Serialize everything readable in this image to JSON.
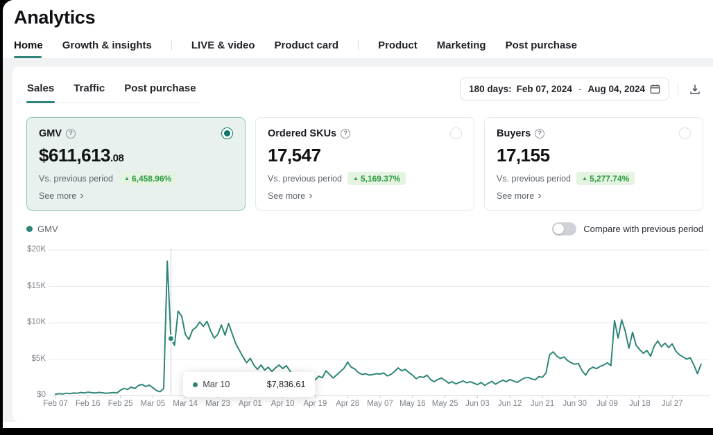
{
  "page": {
    "title": "Analytics"
  },
  "nav": {
    "items": [
      {
        "label": "Home",
        "active": true
      },
      {
        "label": "Growth & insights",
        "active": false
      },
      {
        "label": "LIVE & video",
        "active": false
      },
      {
        "label": "Product card",
        "active": false
      },
      {
        "label": "Product",
        "active": false
      },
      {
        "label": "Marketing",
        "active": false
      },
      {
        "label": "Post purchase",
        "active": false
      }
    ],
    "divider_after": [
      1,
      3
    ]
  },
  "panel": {
    "tabs": [
      {
        "label": "Sales",
        "active": true
      },
      {
        "label": "Traffic",
        "active": false
      },
      {
        "label": "Post purchase",
        "active": false
      }
    ],
    "date_range": {
      "prefix": "180 days:",
      "start": "Feb 07, 2024",
      "separator": "-",
      "end": "Aug 04, 2024"
    },
    "help_glyph": "?",
    "change_up_glyph": "▲",
    "see_more_chevron": "›",
    "metric_cards": [
      {
        "title": "GMV",
        "value_main": "$611,613",
        "value_decimal": ".08",
        "vs_label": "Vs. previous period",
        "change": "6,458.96%",
        "see_more": "See more",
        "selected": true
      },
      {
        "title": "Ordered SKUs",
        "value_main": "17,547",
        "value_decimal": "",
        "vs_label": "Vs. previous period",
        "change": "5,169.37%",
        "see_more": "See more",
        "selected": false
      },
      {
        "title": "Buyers",
        "value_main": "17,155",
        "value_decimal": "",
        "vs_label": "Vs. previous period",
        "change": "5,277.74%",
        "see_more": "See more",
        "selected": false
      }
    ],
    "legend": {
      "label": "GMV"
    },
    "compare_toggle": {
      "label": "Compare with previous period",
      "on": false
    }
  },
  "chart_data": {
    "type": "line",
    "title": "GMV daily trend",
    "series_name": "GMV",
    "unit": "USD",
    "start_date": "Feb 07, 2024",
    "end_date": "Aug 04, 2024",
    "grid": true,
    "legend_position": "top-left",
    "ylim": [
      0,
      20000
    ],
    "y_tick_labels": [
      "$0",
      "$5K",
      "$10K",
      "$15K",
      "$20K"
    ],
    "x_tick_labels": [
      "Feb 07",
      "Feb 16",
      "Feb 25",
      "Mar 05",
      "Mar 14",
      "Mar 23",
      "Apr 01",
      "Apr 10",
      "Apr 19",
      "Apr 28",
      "May 07",
      "May 16",
      "May 25",
      "Jun 03",
      "Jun 12",
      "Jun 21",
      "Jun 30",
      "Jul 09",
      "Jul 18",
      "Jul 27"
    ],
    "x_tick_interval_days": 9,
    "colors": {
      "line": "#2e8577"
    },
    "tooltip": {
      "date": "Mar 10",
      "value": "$7,836.61",
      "day_index": 32
    },
    "values": [
      180,
      260,
      210,
      310,
      260,
      340,
      300,
      420,
      360,
      460,
      400,
      340,
      430,
      380,
      310,
      360,
      410,
      340,
      720,
      980,
      840,
      1150,
      960,
      1380,
      1520,
      1240,
      1430,
      1080,
      680,
      520,
      950,
      18470,
      7836.61,
      6900,
      11600,
      10900,
      8400,
      7700,
      9000,
      9400,
      10100,
      9500,
      10200,
      8900,
      7900,
      8400,
      9700,
      8300,
      9900,
      8500,
      7100,
      6200,
      5300,
      4500,
      5100,
      4200,
      3600,
      4200,
      3500,
      3900,
      3300,
      3800,
      4200,
      3700,
      4100,
      3400,
      2500,
      2100,
      1950,
      2250,
      2050,
      2350,
      2150,
      2650,
      2450,
      3400,
      2900,
      2400,
      2850,
      3300,
      3750,
      4600,
      3900,
      3650,
      3150,
      2900,
      3000,
      2800,
      2900,
      3000,
      2950,
      3100,
      2700,
      2900,
      3300,
      3800,
      3400,
      3600,
      3150,
      2800,
      2300,
      2600,
      2500,
      2800,
      2200,
      1900,
      2200,
      2400,
      2100,
      1700,
      1900,
      1600,
      1800,
      2000,
      1750,
      1900,
      1700,
      1500,
      1800,
      1400,
      1700,
      1950,
      1550,
      1850,
      2100,
      1900,
      2200,
      2000,
      1800,
      2100,
      2400,
      2500,
      2300,
      2150,
      2600,
      2500,
      3100,
      5600,
      6000,
      5400,
      5100,
      5300,
      4800,
      4500,
      4300,
      4400,
      3400,
      2800,
      3600,
      3900,
      3700,
      4000,
      4200,
      4500,
      4100,
      10300,
      7900,
      10400,
      8800,
      6500,
      8700,
      6900,
      6300,
      5800,
      6200,
      5400,
      6800,
      7500,
      6700,
      7200,
      6600,
      7100,
      6100,
      5600,
      5300,
      5000,
      5200,
      4200,
      3000,
      4300
    ]
  }
}
